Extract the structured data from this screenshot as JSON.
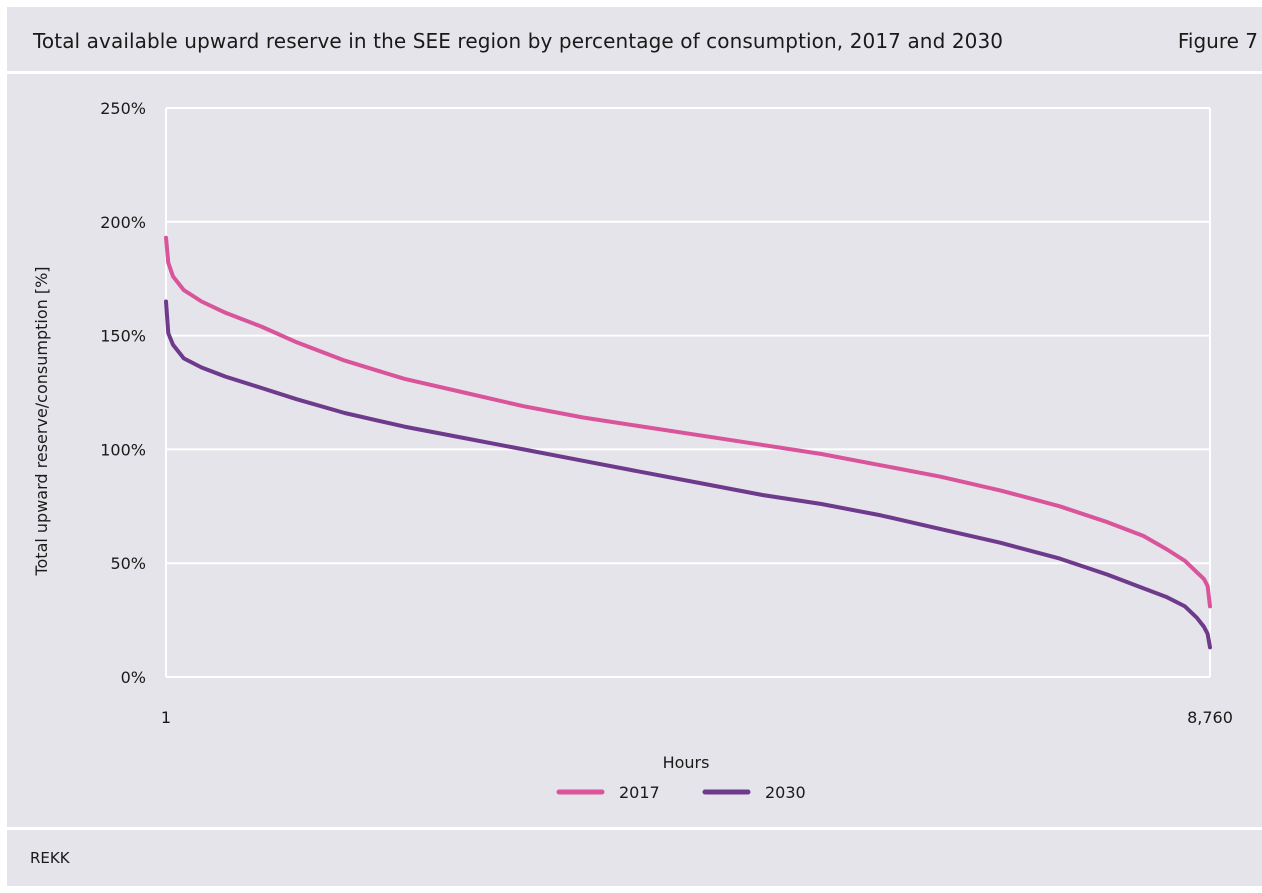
{
  "header": {
    "title": "Total available upward reserve in the SEE region by percentage of consumption, 2017 and 2030",
    "figure_label": "Figure 7"
  },
  "footer": {
    "source": "REKK"
  },
  "colors": {
    "panel_bg": "#e4e4ea",
    "grid": "#ffffff",
    "series_2017": "#d9549a",
    "series_2030": "#6e3a8c"
  },
  "chart_data": {
    "type": "line",
    "xlabel": "Hours",
    "ylabel": "Total upward reserve/consumption [%]",
    "xlim": [
      1,
      8760
    ],
    "ylim": [
      0,
      250
    ],
    "x_tick_labels": [
      "1",
      "8,760"
    ],
    "y_ticks": [
      0,
      50,
      100,
      150,
      200,
      250
    ],
    "y_tick_labels": [
      "0%",
      "50%",
      "100%",
      "150%",
      "200%",
      "250%"
    ],
    "grid": "horizontal",
    "legend_position": "bottom",
    "series": [
      {
        "name": "2017",
        "color": "#d9549a",
        "x": [
          1,
          20,
          60,
          150,
          300,
          500,
          800,
          1100,
          1500,
          2000,
          2500,
          3000,
          3500,
          4000,
          4500,
          5000,
          5500,
          6000,
          6500,
          7000,
          7500,
          7900,
          8200,
          8400,
          8550,
          8650,
          8710,
          8740,
          8760
        ],
        "values": [
          193,
          182,
          176,
          170,
          165,
          160,
          154,
          147,
          139,
          131,
          125,
          119,
          114,
          110,
          106,
          102,
          98,
          93,
          88,
          82,
          75,
          68,
          62,
          56,
          51,
          46,
          43,
          40,
          31
        ]
      },
      {
        "name": "2030",
        "color": "#6e3a8c",
        "x": [
          1,
          20,
          60,
          150,
          300,
          500,
          800,
          1100,
          1500,
          2000,
          2500,
          3000,
          3500,
          4000,
          4500,
          5000,
          5500,
          6000,
          6500,
          7000,
          7500,
          7900,
          8200,
          8400,
          8550,
          8650,
          8710,
          8740,
          8760
        ],
        "values": [
          165,
          151,
          146,
          140,
          136,
          132,
          127,
          122,
          116,
          110,
          105,
          100,
          95,
          90,
          85,
          80,
          76,
          71,
          65,
          59,
          52,
          45,
          39,
          35,
          31,
          26,
          22,
          19,
          13
        ]
      }
    ]
  }
}
